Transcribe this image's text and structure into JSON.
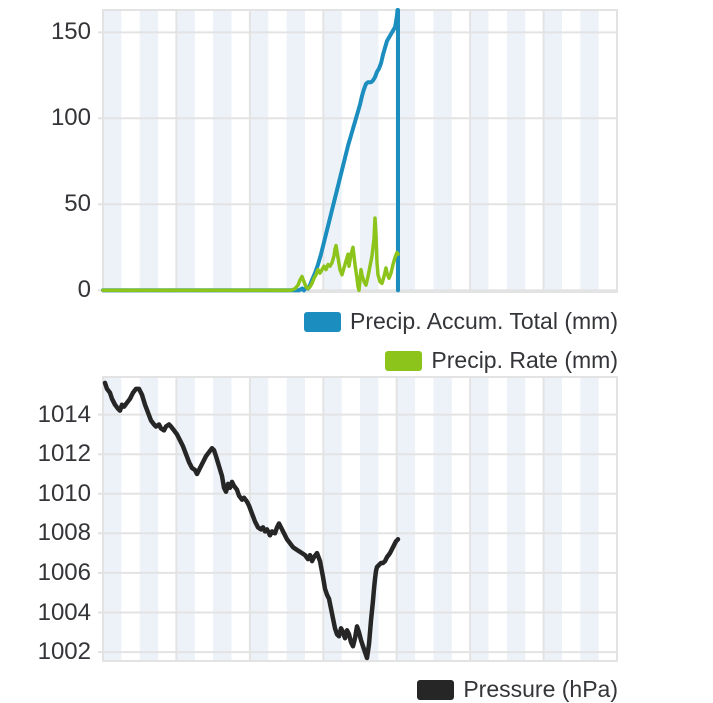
{
  "colors": {
    "accum_blue": "#1b8ebf",
    "rate_green": "#8cc41c",
    "pressure_black": "#262626",
    "stripe": "#edf2f9",
    "grid": "#e3e3e3",
    "text": "#333538"
  },
  "chart_data": [
    {
      "type": "line",
      "title": "",
      "xlabel": "",
      "ylabel": "",
      "x_unit": "px_offset_in_plot",
      "x_intervals": 7,
      "grid": true,
      "legend_position": "below-right",
      "ylim": [
        -1,
        163
      ],
      "yticks": [
        0,
        50,
        100,
        150
      ],
      "series": [
        {
          "name": "Precip. Accum. Total (mm)",
          "color": "#1b8ebf",
          "width": 4,
          "points": [
            [
              0,
              0
            ],
            [
              190,
              0
            ],
            [
              196,
              0
            ],
            [
              199,
              1
            ],
            [
              201,
              0
            ],
            [
              203,
              2
            ],
            [
              205,
              1
            ],
            [
              207,
              3
            ],
            [
              209,
              6
            ],
            [
              212,
              10
            ],
            [
              215,
              15
            ],
            [
              218,
              21
            ],
            [
              221,
              28
            ],
            [
              224,
              35
            ],
            [
              227,
              42
            ],
            [
              230,
              49
            ],
            [
              233,
              56
            ],
            [
              236,
              63
            ],
            [
              239,
              70
            ],
            [
              242,
              77
            ],
            [
              245,
              84
            ],
            [
              248,
              90
            ],
            [
              251,
              96
            ],
            [
              254,
              102
            ],
            [
              257,
              108
            ],
            [
              259,
              113
            ],
            [
              261,
              117
            ],
            [
              263,
              120
            ],
            [
              265,
              121
            ],
            [
              268,
              121
            ],
            [
              270,
              122
            ],
            [
              272,
              124
            ],
            [
              274,
              127
            ],
            [
              276,
              129
            ],
            [
              278,
              132
            ],
            [
              280,
              137
            ],
            [
              282,
              141
            ],
            [
              284,
              145
            ],
            [
              286,
              147
            ],
            [
              288,
              149
            ],
            [
              290,
              151
            ],
            [
              292,
              153
            ],
            [
              293,
              156
            ],
            [
              294,
              160
            ],
            [
              294.5,
              163
            ],
            [
              295,
              163
            ],
            [
              295,
              0
            ]
          ]
        },
        {
          "name": "Precip. Rate (mm)",
          "color": "#8cc41c",
          "width": 3.5,
          "points": [
            [
              0,
              0
            ],
            [
              188,
              0
            ],
            [
              192,
              1
            ],
            [
              195,
              3
            ],
            [
              197,
              6
            ],
            [
              199,
              8
            ],
            [
              201,
              5
            ],
            [
              203,
              2
            ],
            [
              205,
              1
            ],
            [
              207,
              2
            ],
            [
              209,
              4
            ],
            [
              211,
              7
            ],
            [
              213,
              9
            ],
            [
              215,
              12
            ],
            [
              217,
              10
            ],
            [
              219,
              12
            ],
            [
              221,
              14
            ],
            [
              223,
              12
            ],
            [
              225,
              15
            ],
            [
              227,
              14
            ],
            [
              229,
              16
            ],
            [
              231,
              20
            ],
            [
              232,
              24
            ],
            [
              233,
              26
            ],
            [
              235,
              19
            ],
            [
              237,
              12
            ],
            [
              239,
              9
            ],
            [
              241,
              13
            ],
            [
              243,
              17
            ],
            [
              245,
              21
            ],
            [
              246,
              14
            ],
            [
              248,
              21
            ],
            [
              250,
              25
            ],
            [
              252,
              15
            ],
            [
              254,
              7
            ],
            [
              255,
              2
            ],
            [
              256,
              0
            ],
            [
              257,
              6
            ],
            [
              258,
              12
            ],
            [
              259,
              9
            ],
            [
              261,
              5
            ],
            [
              263,
              3
            ],
            [
              265,
              8
            ],
            [
              267,
              14
            ],
            [
              269,
              20
            ],
            [
              271,
              30
            ],
            [
              272,
              42
            ],
            [
              273,
              32
            ],
            [
              274,
              16
            ],
            [
              275,
              9
            ],
            [
              277,
              5
            ],
            [
              279,
              4
            ],
            [
              281,
              8
            ],
            [
              283,
              13
            ],
            [
              284,
              10
            ],
            [
              286,
              7
            ],
            [
              288,
              10
            ],
            [
              290,
              15
            ],
            [
              292,
              19
            ],
            [
              294,
              22
            ],
            [
              295,
              21
            ]
          ]
        }
      ]
    },
    {
      "type": "line",
      "title": "",
      "xlabel": "",
      "ylabel": "",
      "x_unit": "px_offset_in_plot",
      "x_intervals": 7,
      "grid": true,
      "legend_position": "below-right",
      "ylim": [
        1001.55,
        1015.9
      ],
      "yticks": [
        1002,
        1004,
        1006,
        1008,
        1010,
        1012,
        1014
      ],
      "series": [
        {
          "name": "Pressure (hPa)",
          "color": "#262626",
          "width": 4.5,
          "points": [
            [
              2,
              1015.6
            ],
            [
              4,
              1015.3
            ],
            [
              7,
              1015.1
            ],
            [
              9,
              1014.8
            ],
            [
              12,
              1014.5
            ],
            [
              15,
              1014.3
            ],
            [
              17,
              1014.2
            ],
            [
              19,
              1014.5
            ],
            [
              21,
              1014.4
            ],
            [
              24,
              1014.6
            ],
            [
              27,
              1014.8
            ],
            [
              30,
              1015.1
            ],
            [
              33,
              1015.3
            ],
            [
              36,
              1015.3
            ],
            [
              39,
              1015.0
            ],
            [
              42,
              1014.5
            ],
            [
              45,
              1014.1
            ],
            [
              48,
              1013.7
            ],
            [
              51,
              1013.5
            ],
            [
              53,
              1013.4
            ],
            [
              56,
              1013.5
            ],
            [
              58,
              1013.3
            ],
            [
              61,
              1013.2
            ],
            [
              63,
              1013.4
            ],
            [
              66,
              1013.5
            ],
            [
              68,
              1013.4
            ],
            [
              71,
              1013.2
            ],
            [
              74,
              1013.0
            ],
            [
              77,
              1012.7
            ],
            [
              80,
              1012.4
            ],
            [
              83,
              1012.0
            ],
            [
              86,
              1011.6
            ],
            [
              89,
              1011.3
            ],
            [
              92,
              1011.2
            ],
            [
              94,
              1011.0
            ],
            [
              97,
              1011.3
            ],
            [
              100,
              1011.6
            ],
            [
              103,
              1011.9
            ],
            [
              106,
              1012.1
            ],
            [
              109,
              1012.3
            ],
            [
              111,
              1012.2
            ],
            [
              113,
              1011.9
            ],
            [
              116,
              1011.4
            ],
            [
              119,
              1010.9
            ],
            [
              121,
              1010.3
            ],
            [
              123,
              1010.1
            ],
            [
              125,
              1010.5
            ],
            [
              127,
              1010.3
            ],
            [
              129,
              1010.6
            ],
            [
              131,
              1010.4
            ],
            [
              134,
              1010.2
            ],
            [
              136,
              1009.9
            ],
            [
              139,
              1009.7
            ],
            [
              141,
              1009.8
            ],
            [
              144,
              1009.6
            ],
            [
              146,
              1009.4
            ],
            [
              149,
              1009.0
            ],
            [
              152,
              1008.6
            ],
            [
              155,
              1008.3
            ],
            [
              158,
              1008.2
            ],
            [
              160,
              1008.3
            ],
            [
              162,
              1008.1
            ],
            [
              164,
              1008.2
            ],
            [
              167,
              1007.9
            ],
            [
              169,
              1008.1
            ],
            [
              172,
              1008.0
            ],
            [
              174,
              1008.3
            ],
            [
              176,
              1008.5
            ],
            [
              178,
              1008.3
            ],
            [
              181,
              1008.0
            ],
            [
              184,
              1007.7
            ],
            [
              187,
              1007.5
            ],
            [
              190,
              1007.3
            ],
            [
              193,
              1007.2
            ],
            [
              196,
              1007.1
            ],
            [
              199,
              1007.0
            ],
            [
              202,
              1006.9
            ],
            [
              205,
              1006.7
            ],
            [
              207,
              1006.9
            ],
            [
              209,
              1006.6
            ],
            [
              211,
              1006.8
            ],
            [
              214,
              1007.0
            ],
            [
              217,
              1006.6
            ],
            [
              220,
              1005.8
            ],
            [
              222,
              1005.2
            ],
            [
              224,
              1004.9
            ],
            [
              226,
              1004.7
            ],
            [
              228,
              1004.2
            ],
            [
              230,
              1003.7
            ],
            [
              232,
              1003.2
            ],
            [
              234,
              1002.9
            ],
            [
              236,
              1002.8
            ],
            [
              238,
              1003.2
            ],
            [
              240,
              1003.0
            ],
            [
              242,
              1002.7
            ],
            [
              244,
              1003.1
            ],
            [
              246,
              1002.9
            ],
            [
              248,
              1002.5
            ],
            [
              250,
              1002.3
            ],
            [
              252,
              1002.7
            ],
            [
              254,
              1003.3
            ],
            [
              256,
              1003.0
            ],
            [
              258,
              1002.6
            ],
            [
              260,
              1002.3
            ],
            [
              262,
              1002.0
            ],
            [
              264,
              1001.7
            ],
            [
              266,
              1002.4
            ],
            [
              268,
              1003.6
            ],
            [
              270,
              1004.6
            ],
            [
              271,
              1005.2
            ],
            [
              272,
              1005.7
            ],
            [
              273,
              1006.1
            ],
            [
              274,
              1006.3
            ],
            [
              276,
              1006.4
            ],
            [
              278,
              1006.5
            ],
            [
              280,
              1006.5
            ],
            [
              282,
              1006.6
            ],
            [
              284,
              1006.8
            ],
            [
              287,
              1007.0
            ],
            [
              290,
              1007.3
            ],
            [
              293,
              1007.6
            ],
            [
              295,
              1007.7
            ]
          ]
        }
      ]
    }
  ]
}
